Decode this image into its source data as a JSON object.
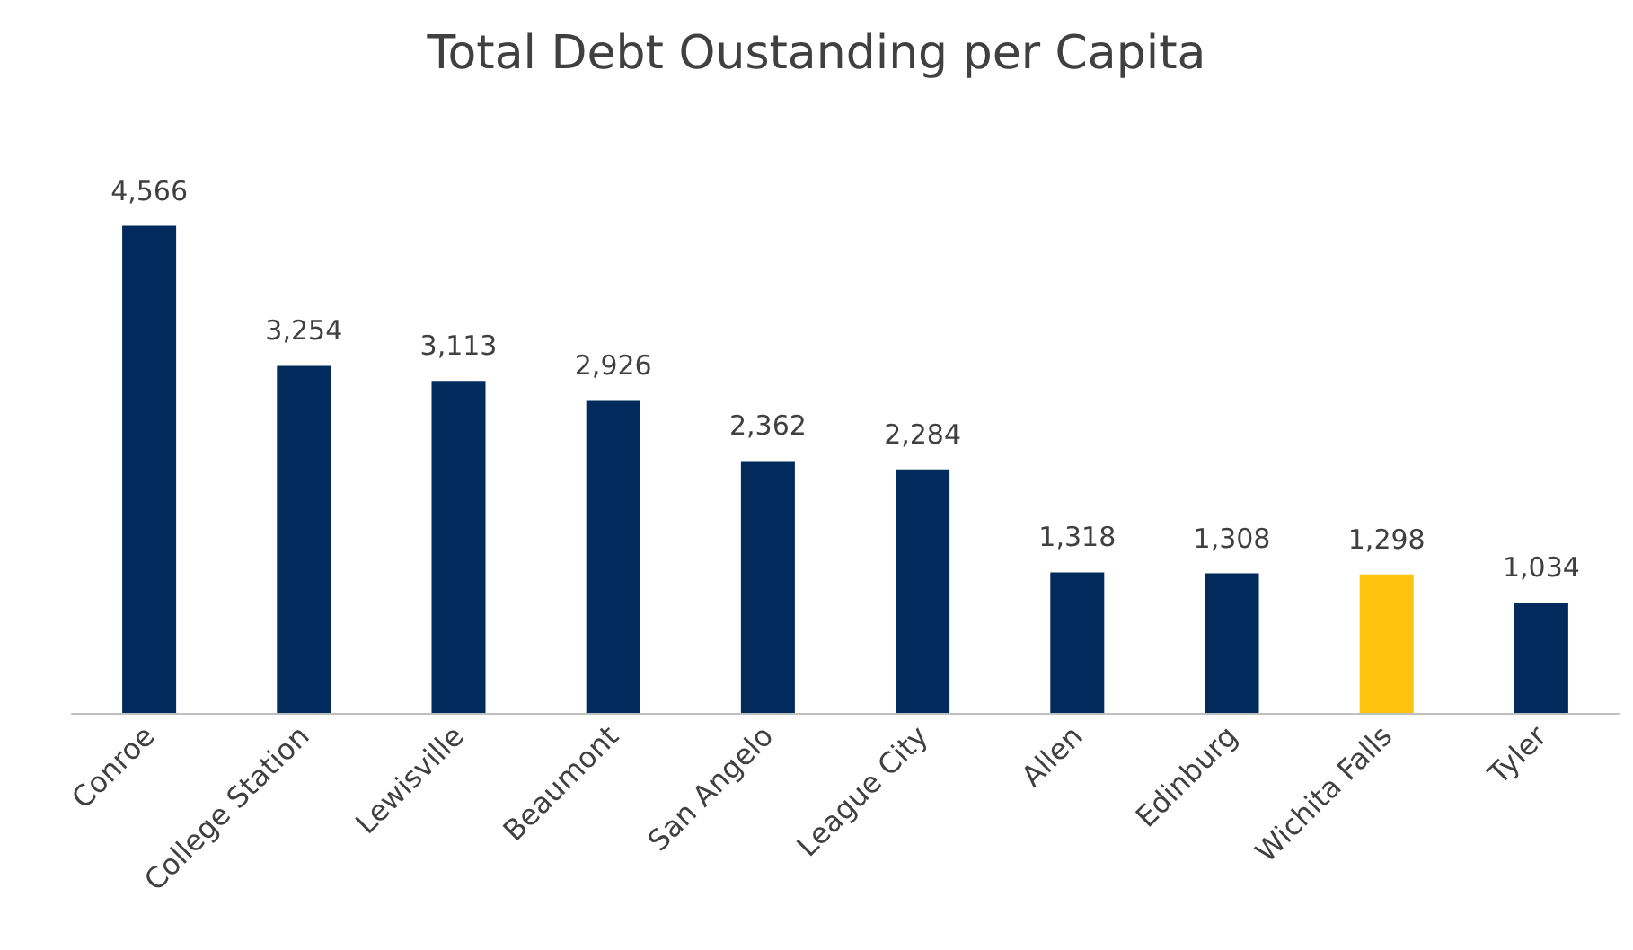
{
  "chart_data": {
    "type": "bar",
    "title": "Total Debt Oustanding per Capita",
    "categories": [
      "Conroe",
      "College Station",
      "Lewisville",
      "Beaumont",
      "San Angelo",
      "League City",
      "Allen",
      "Edinburg",
      "Wichita Falls",
      "Tyler"
    ],
    "values": [
      4566,
      3254,
      3113,
      2926,
      2362,
      2284,
      1318,
      1308,
      1298,
      1034
    ],
    "value_labels": [
      "4,566",
      "3,254",
      "3,113",
      "2,926",
      "2,362",
      "2,284",
      "1,318",
      "1,308",
      "1,298",
      "1,034"
    ],
    "colors": [
      "#002b5c",
      "#002b5c",
      "#002b5c",
      "#002b5c",
      "#002b5c",
      "#002b5c",
      "#002b5c",
      "#002b5c",
      "#ffc20e",
      "#002b5c"
    ]
  }
}
